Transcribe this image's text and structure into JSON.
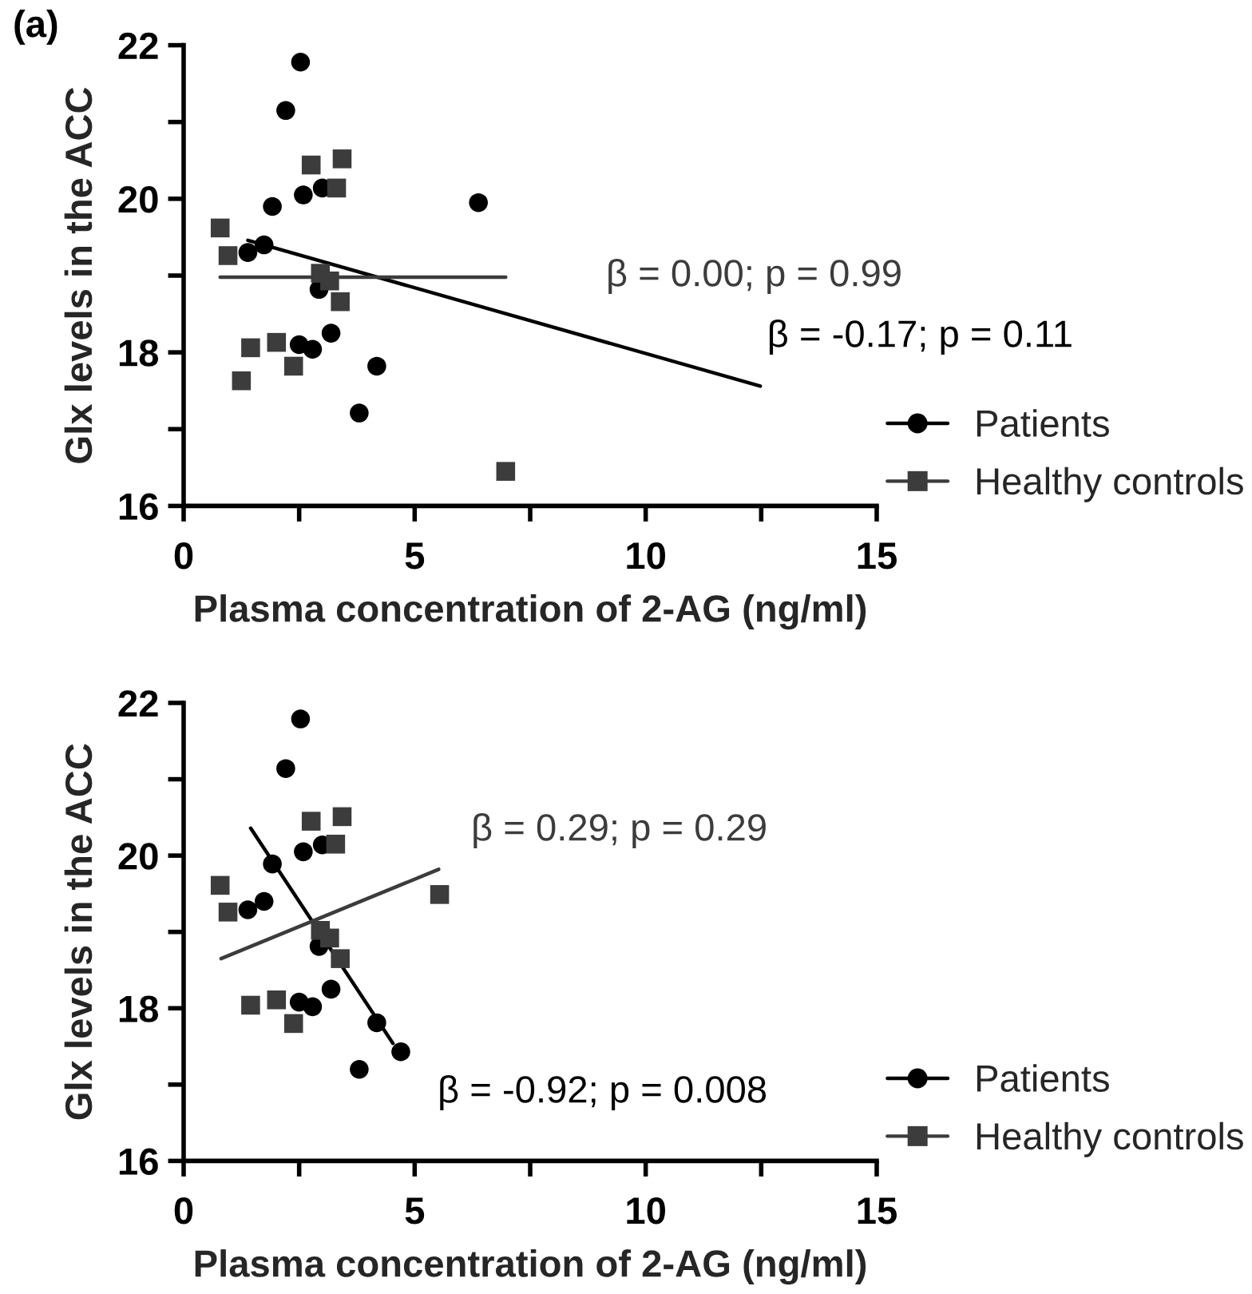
{
  "chart_data": [
    {
      "type": "scatter",
      "xlabel": "Plasma concentration of 2-AG (ng/ml)",
      "ylabel": "Glx levels in the ACC",
      "xlim": [
        0,
        15
      ],
      "ylim": [
        16,
        22
      ],
      "xticks": [
        0,
        {
          "value": 2.5,
          "label": null
        },
        5,
        {
          "value": 7.5,
          "label": null
        },
        10,
        {
          "value": 12.5,
          "label": null
        },
        15
      ],
      "yticks": [
        16,
        {
          "value": 17,
          "label": null
        },
        18,
        {
          "value": 19,
          "label": null
        },
        20,
        {
          "value": 21,
          "label": null
        },
        22
      ],
      "legend": "bottom right",
      "series": [
        {
          "name": "Patients",
          "type": "scatter",
          "marker": "circle",
          "color": "#000000",
          "x": [
            2.53,
            2.21,
            2.59,
            3.0,
            1.92,
            1.39,
            1.74,
            2.93,
            3.19,
            2.5,
            2.79,
            4.18,
            3.8,
            6.38
          ],
          "values": [
            21.78,
            21.15,
            20.05,
            20.14,
            19.9,
            19.3,
            19.4,
            18.82,
            18.25,
            18.1,
            18.04,
            17.82,
            17.21,
            19.95
          ]
        },
        {
          "name": "Healthy controls",
          "type": "scatter",
          "marker": "square",
          "color": "#3c3c3c",
          "x": [
            2.76,
            3.43,
            3.31,
            0.79,
            0.96,
            2.96,
            3.16,
            3.39,
            1.45,
            2.01,
            2.38,
            1.25,
            6.97
          ],
          "values": [
            20.44,
            20.52,
            20.14,
            19.62,
            19.26,
            19.03,
            18.93,
            18.66,
            18.06,
            18.13,
            17.82,
            17.63,
            16.45
          ]
        },
        {
          "type": "line",
          "color": "#000000",
          "x": [
            1.39,
            12.48
          ],
          "values": [
            19.46,
            17.56
          ]
        },
        {
          "type": "line",
          "color": "#3c3c3c",
          "x": [
            0.79,
            6.97
          ],
          "values": [
            18.98,
            18.98
          ]
        }
      ],
      "annotations": [
        "(a)",
        "β = 0.00; p = 0.99",
        "β = -0.17; p = 0.11"
      ]
    },
    {
      "type": "scatter",
      "xlabel": "Plasma concentration of 2-AG (ng/ml)",
      "ylabel": "Glx levels in the ACC",
      "xlim": [
        0,
        15
      ],
      "ylim": [
        16,
        22
      ],
      "xticks": [
        0,
        {
          "value": 2.5,
          "label": null
        },
        5,
        {
          "value": 7.5,
          "label": null
        },
        10,
        {
          "value": 12.5,
          "label": null
        },
        15
      ],
      "yticks": [
        16,
        {
          "value": 17,
          "label": null
        },
        18,
        {
          "value": 19,
          "label": null
        },
        20,
        {
          "value": 21,
          "label": null
        },
        22
      ],
      "legend": "bottom right",
      "series": [
        {
          "name": "Patients",
          "type": "scatter",
          "marker": "circle",
          "color": "#000000",
          "x": [
            2.53,
            2.21,
            1.92,
            2.59,
            3.0,
            1.39,
            1.74,
            2.93,
            3.19,
            2.5,
            2.79,
            4.18,
            3.8,
            4.7
          ],
          "values": [
            21.79,
            21.14,
            19.89,
            20.05,
            20.14,
            19.29,
            19.4,
            18.81,
            18.25,
            18.08,
            18.02,
            17.81,
            17.2,
            17.43
          ]
        },
        {
          "name": "Healthy controls",
          "type": "scatter",
          "marker": "square",
          "color": "#3c3c3c",
          "x": [
            2.76,
            3.43,
            3.29,
            0.79,
            0.96,
            2.96,
            3.16,
            3.39,
            1.45,
            2.01,
            2.38,
            5.54
          ],
          "values": [
            20.45,
            20.51,
            20.15,
            19.61,
            19.26,
            19.02,
            18.92,
            18.65,
            18.04,
            18.11,
            17.8,
            19.49
          ]
        },
        {
          "type": "line",
          "color": "#000000",
          "x": [
            1.45,
            4.53
          ],
          "values": [
            20.36,
            17.54
          ]
        },
        {
          "type": "line",
          "color": "#3c3c3c",
          "x": [
            0.81,
            5.52
          ],
          "values": [
            18.65,
            19.82
          ]
        }
      ],
      "annotations": [
        "β = 0.29; p = 0.29",
        "β = -0.92; p = 0.008"
      ]
    }
  ]
}
